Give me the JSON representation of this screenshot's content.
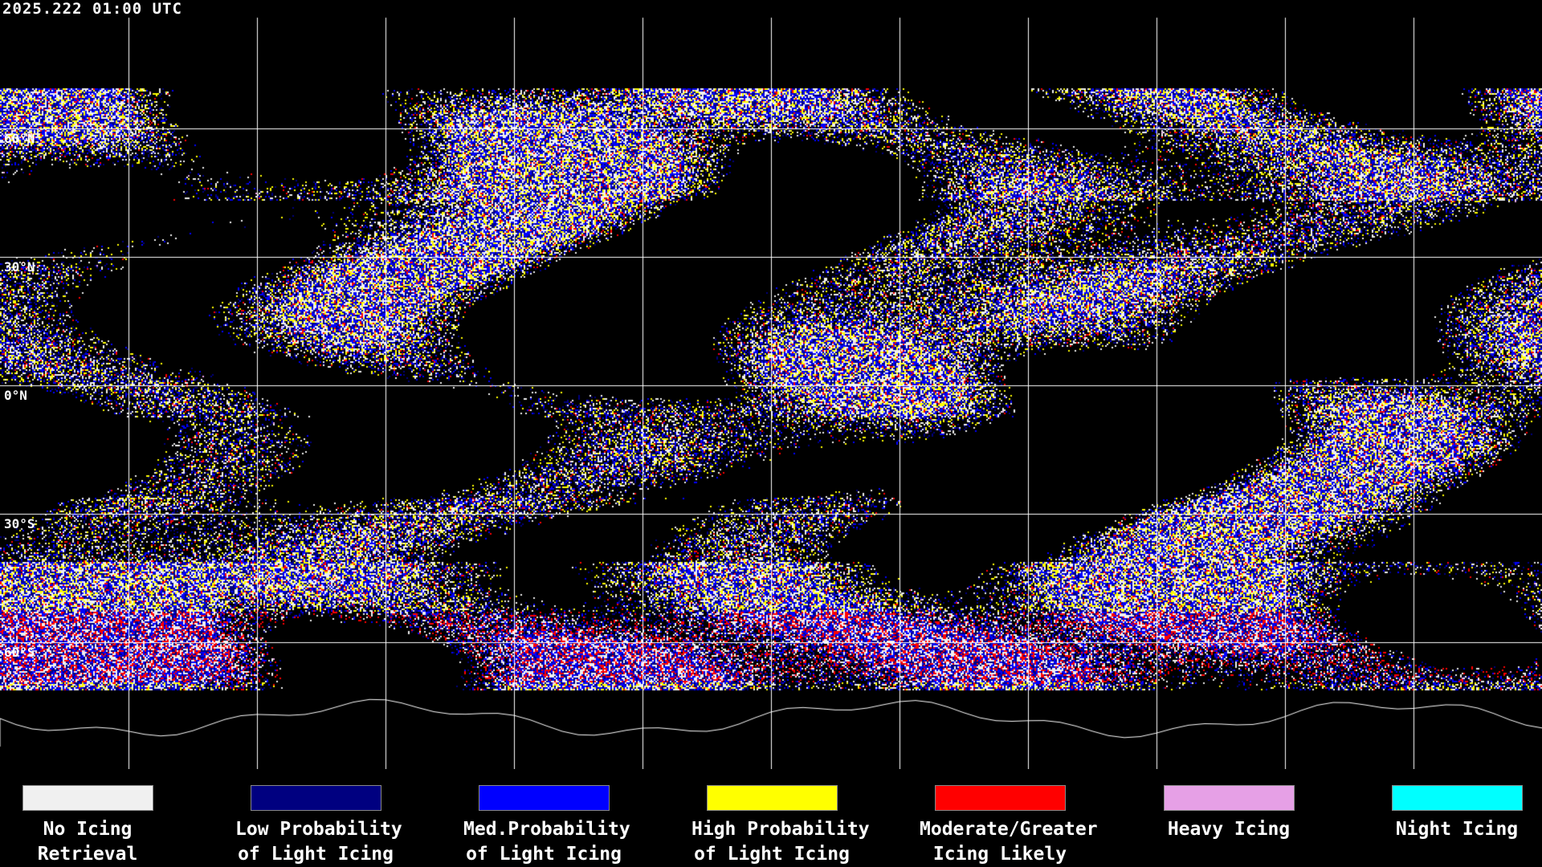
{
  "title": "2025.222 01:00 UTC",
  "latitude_labels": [
    "60°N",
    "30°N",
    "0°N",
    "30°S",
    "60°S"
  ],
  "legend": [
    {
      "line1": "No Icing",
      "line2": "Retrieval",
      "color": "#f0f0f0"
    },
    {
      "line1": "Low Probability",
      "line2": "of Light Icing",
      "color": "#000080"
    },
    {
      "line1": "Med.Probability",
      "line2": "of Light Icing",
      "color": "#0000ff"
    },
    {
      "line1": "High Probability",
      "line2": "of Light Icing",
      "color": "#ffff00"
    },
    {
      "line1": "Moderate/Greater",
      "line2": "Icing Likely",
      "color": "#ff0000"
    },
    {
      "line1": "Heavy Icing",
      "line2": "",
      "color": "#e6a0e6"
    },
    {
      "line1": "Night Icing",
      "line2": "",
      "color": "#00ffff"
    }
  ]
}
